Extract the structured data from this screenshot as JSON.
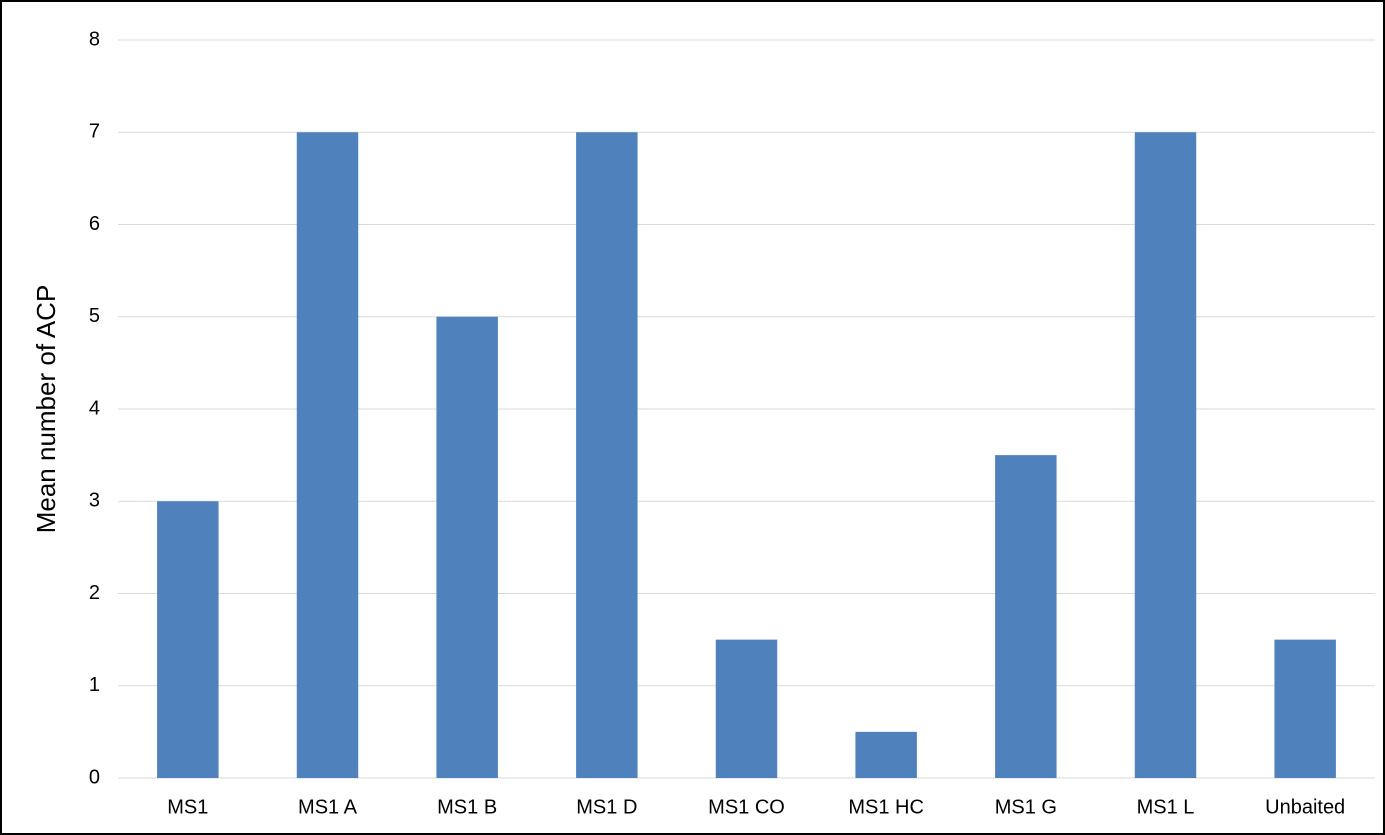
{
  "chart_data": {
    "type": "bar",
    "y_label": "Mean number of ACP",
    "categories": [
      "MS1",
      "MS1 A",
      "MS1 B",
      "MS1 D",
      "MS1 CO",
      "MS1 HC",
      "MS1 G",
      "MS1 L",
      "Unbaited"
    ],
    "values": [
      3,
      7,
      5,
      7,
      1.5,
      0.5,
      3.5,
      7,
      1.5
    ],
    "color": "#4f81bd",
    "ylim": [
      0,
      8
    ],
    "yticks": [
      0,
      1,
      2,
      3,
      4,
      5,
      6,
      7,
      8
    ],
    "grid": true
  }
}
